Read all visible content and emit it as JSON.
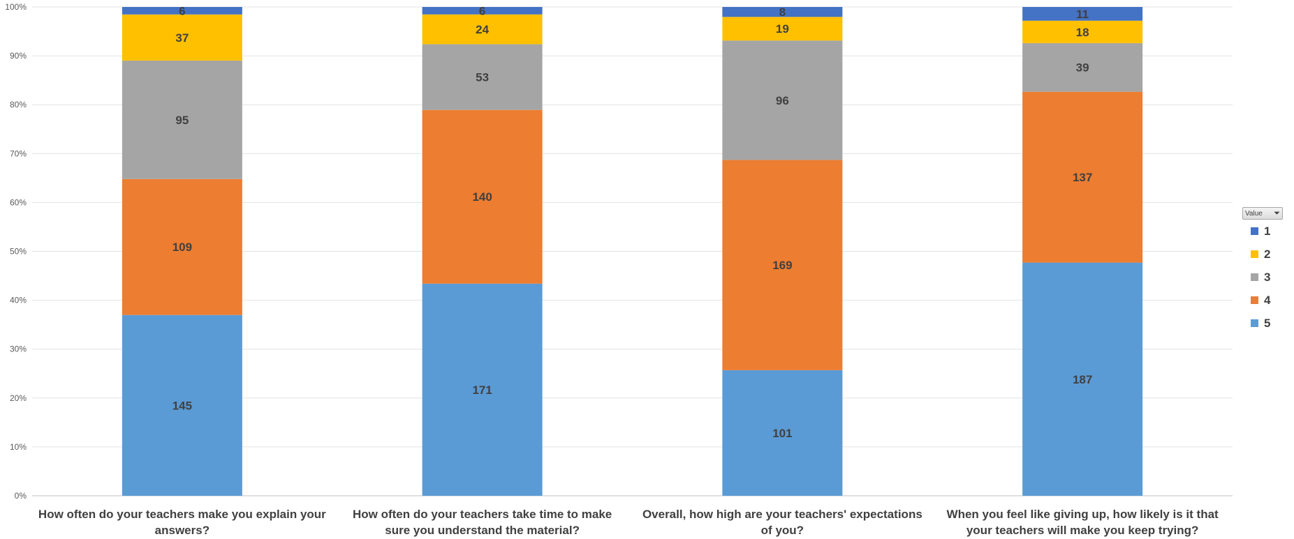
{
  "chart_data": {
    "type": "bar",
    "stacked": "percent",
    "categories": [
      [
        "How often do your teachers make you explain your",
        "answers?"
      ],
      [
        "How often do your teachers take time to make",
        "sure you understand the material?"
      ],
      [
        "Overall, how high are your teachers' expectations",
        "of you?"
      ],
      [
        "When you feel like giving up, how likely is it that",
        "your teachers will make you keep trying?"
      ]
    ],
    "series": [
      {
        "name": "5",
        "color": "#5B9BD5",
        "values": [
          145,
          171,
          101,
          187
        ]
      },
      {
        "name": "4",
        "color": "#ED7D31",
        "values": [
          109,
          140,
          169,
          137
        ]
      },
      {
        "name": "3",
        "color": "#A5A5A5",
        "values": [
          95,
          53,
          96,
          39
        ]
      },
      {
        "name": "2",
        "color": "#FFC000",
        "values": [
          37,
          24,
          19,
          18
        ]
      },
      {
        "name": "1",
        "color": "#4472C4",
        "values": [
          6,
          6,
          8,
          11
        ]
      }
    ],
    "yticks": [
      "0%",
      "10%",
      "20%",
      "30%",
      "40%",
      "50%",
      "60%",
      "70%",
      "80%",
      "90%",
      "100%"
    ],
    "ylim": [
      0,
      100
    ],
    "grid": true,
    "legend_position": "right",
    "legend_title": "Value",
    "legend_order": [
      "1",
      "2",
      "3",
      "4",
      "5"
    ]
  }
}
